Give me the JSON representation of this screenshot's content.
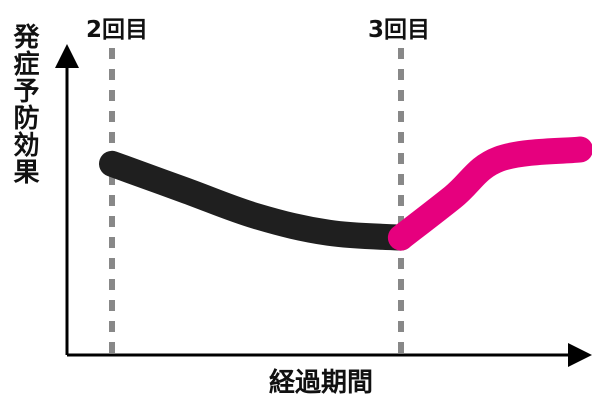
{
  "chart_data": {
    "type": "line",
    "title": "",
    "xlabel": "経過期間",
    "ylabel": "発症予防効果",
    "annotations": [
      {
        "label": "2回目",
        "x": 0
      },
      {
        "label": "3回目",
        "x": 1
      }
    ],
    "series": [
      {
        "color": "#1f1f1f",
        "points": [
          [
            0,
            0.8
          ],
          [
            0.25,
            0.58
          ],
          [
            0.5,
            0.36
          ],
          [
            0.75,
            0.22
          ],
          [
            1.0,
            0.18
          ]
        ]
      },
      {
        "color": "#e6007e",
        "points": [
          [
            1.0,
            0.18
          ],
          [
            1.18,
            0.52
          ],
          [
            1.34,
            0.84
          ],
          [
            1.62,
            0.92
          ]
        ]
      }
    ],
    "xlim": [
      0,
      1.62
    ],
    "ylim": [
      0,
      1
    ],
    "grid": false,
    "colors": {
      "axis": "#000000",
      "guide": "#888888",
      "text": "#111111"
    }
  }
}
